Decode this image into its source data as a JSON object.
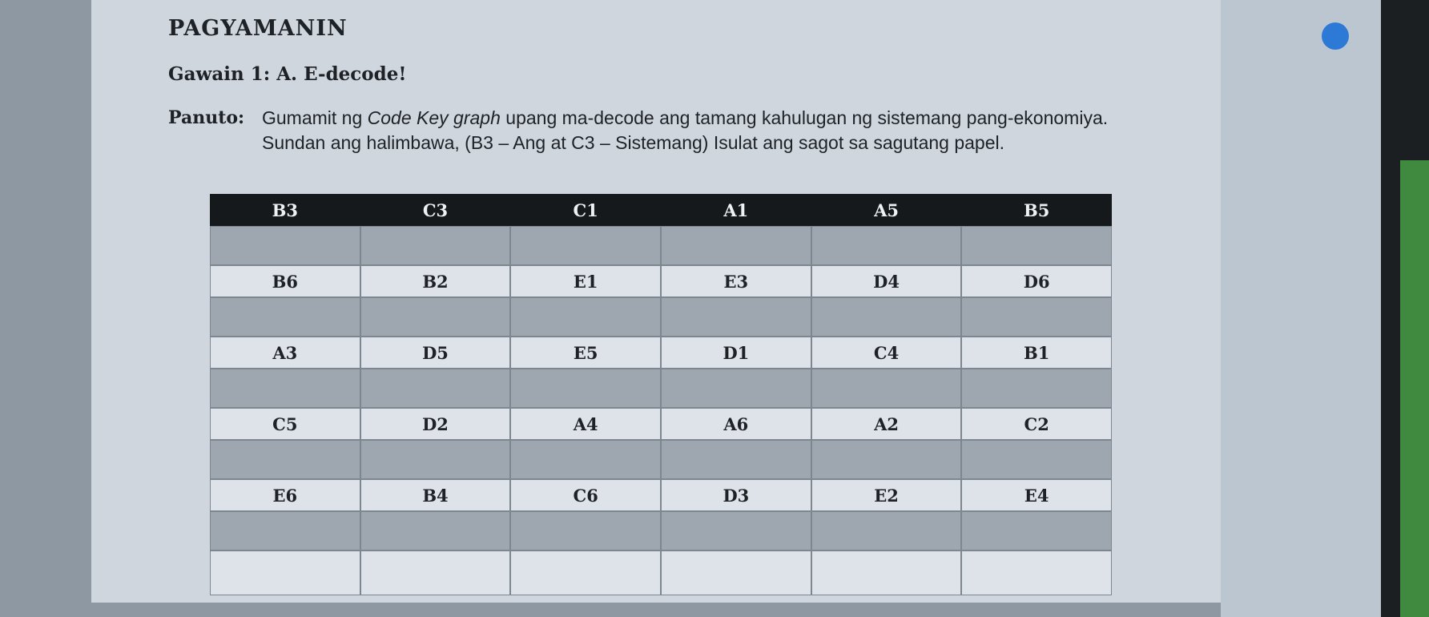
{
  "header": {
    "title": "PAGYAMANIN",
    "subtitle": "Gawain 1: A. E-decode!"
  },
  "instruction": {
    "label": "Panuto:",
    "text_before": "Gumamit ng",
    "emphasis": "Code Key graph",
    "text_after": "upang ma-decode ang tamang kahulugan ng sistemang pang-ekonomiya. Sundan ang halimbawa, (B3 – Ang at C3 – Sistemang) Isulat ang sagot sa sagutang papel."
  },
  "table": {
    "rows": [
      [
        "B3",
        "C3",
        "C1",
        "A1",
        "A5",
        "B5"
      ],
      [
        "B6",
        "B2",
        "E1",
        "E3",
        "D4",
        "D6"
      ],
      [
        "A3",
        "D5",
        "E5",
        "D1",
        "C4",
        "B1"
      ],
      [
        "C5",
        "D2",
        "A4",
        "A6",
        "A2",
        "C2"
      ],
      [
        "E6",
        "B4",
        "C6",
        "D3",
        "E2",
        "E4"
      ]
    ]
  }
}
